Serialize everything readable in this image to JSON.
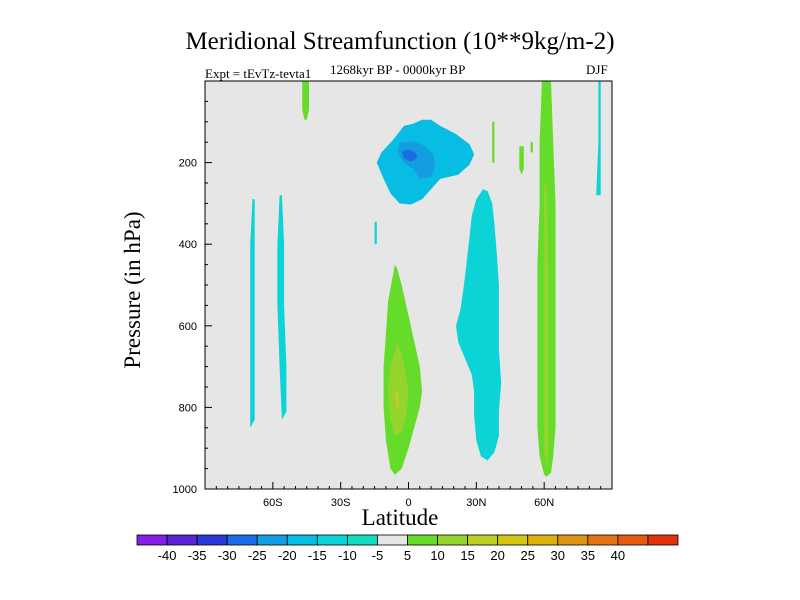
{
  "chart_data": {
    "type": "contour",
    "title": "Meridional Streamfunction (10**9kg/m-2)",
    "experiment": "Expt = tEvTz-tevta1",
    "period": "1268kyr BP - 0000kyr BP",
    "season": "DJF",
    "xlabel": "Latitude",
    "ylabel": "Pressure (in hPa)",
    "xlim": [
      -90,
      90
    ],
    "ylim": [
      1000,
      0
    ],
    "x_ticks": [
      {
        "value": -60,
        "label": "60S"
      },
      {
        "value": -30,
        "label": "30S"
      },
      {
        "value": 0,
        "label": "0"
      },
      {
        "value": 30,
        "label": "30N"
      },
      {
        "value": 60,
        "label": "60N"
      }
    ],
    "y_ticks": [
      {
        "value": 200,
        "label": "200"
      },
      {
        "value": 400,
        "label": "400"
      },
      {
        "value": 600,
        "label": "600"
      },
      {
        "value": 800,
        "label": "800"
      },
      {
        "value": 1000,
        "label": "1000"
      }
    ],
    "background_color": "#e6e6e6",
    "regions": [
      {
        "level": -10,
        "polygon": [
          [
            -2,
            110
          ],
          [
            -7,
            145
          ],
          [
            -12,
            175
          ],
          [
            -14,
            200
          ],
          [
            -11,
            240
          ],
          [
            -8,
            275
          ],
          [
            -4,
            300
          ],
          [
            1,
            303
          ],
          [
            6,
            290
          ],
          [
            10,
            265
          ],
          [
            14,
            240
          ],
          [
            22,
            230
          ],
          [
            27,
            205
          ],
          [
            29,
            180
          ],
          [
            27,
            155
          ],
          [
            21,
            130
          ],
          [
            14,
            110
          ],
          [
            10,
            95
          ],
          [
            6,
            95
          ],
          [
            2,
            105
          ]
        ]
      },
      {
        "level": -15,
        "polygon": [
          [
            -4,
            150
          ],
          [
            -5,
            175
          ],
          [
            -2,
            200
          ],
          [
            2,
            215
          ],
          [
            5,
            240
          ],
          [
            10,
            235
          ],
          [
            12,
            210
          ],
          [
            11,
            180
          ],
          [
            7,
            158
          ],
          [
            2,
            148
          ]
        ]
      },
      {
        "level": -20,
        "polygon": [
          [
            -3,
            172
          ],
          [
            -2,
            190
          ],
          [
            1,
            198
          ],
          [
            4,
            188
          ],
          [
            3,
            174
          ],
          [
            0,
            168
          ]
        ]
      },
      {
        "level": -5,
        "polygon": [
          [
            21,
            600
          ],
          [
            22,
            640
          ],
          [
            25,
            680
          ],
          [
            28,
            720
          ],
          [
            29,
            760
          ],
          [
            29,
            820
          ],
          [
            30,
            880
          ],
          [
            32,
            920
          ],
          [
            35,
            930
          ],
          [
            38,
            910
          ],
          [
            40,
            870
          ],
          [
            40,
            810
          ],
          [
            41,
            740
          ],
          [
            40,
            660
          ],
          [
            40,
            580
          ],
          [
            40,
            500
          ],
          [
            39,
            420
          ],
          [
            38,
            350
          ],
          [
            37,
            300
          ],
          [
            35,
            270
          ],
          [
            33,
            265
          ],
          [
            30,
            290
          ],
          [
            28,
            330
          ],
          [
            27,
            380
          ],
          [
            26,
            430
          ],
          [
            25,
            480
          ],
          [
            24,
            520
          ],
          [
            23,
            560
          ]
        ]
      },
      {
        "level": -5,
        "polygon": [
          [
            -15,
            345
          ],
          [
            -15,
            400
          ],
          [
            -14,
            400
          ],
          [
            -14,
            345
          ]
        ]
      },
      {
        "level": -5,
        "polygon": [
          [
            -69,
            290
          ],
          [
            -70,
            400
          ],
          [
            -70,
            550
          ],
          [
            -70,
            700
          ],
          [
            -70,
            850
          ],
          [
            -68,
            830
          ],
          [
            -68,
            700
          ],
          [
            -68,
            550
          ],
          [
            -68,
            400
          ],
          [
            -68,
            290
          ]
        ]
      },
      {
        "level": -5,
        "polygon": [
          [
            -57,
            280
          ],
          [
            -58,
            400
          ],
          [
            -58,
            550
          ],
          [
            -57,
            700
          ],
          [
            -56,
            830
          ],
          [
            -54,
            810
          ],
          [
            -54,
            700
          ],
          [
            -55,
            550
          ],
          [
            -55,
            400
          ],
          [
            -56,
            280
          ]
        ]
      },
      {
        "level": -5,
        "polygon": [
          [
            84,
            0
          ],
          [
            84,
            150
          ],
          [
            83,
            280
          ],
          [
            85,
            280
          ],
          [
            85,
            150
          ],
          [
            85,
            0
          ]
        ]
      },
      {
        "level": 5,
        "polygon": [
          [
            -6,
            450
          ],
          [
            -9,
            540
          ],
          [
            -10,
            620
          ],
          [
            -11,
            700
          ],
          [
            -11,
            800
          ],
          [
            -10,
            880
          ],
          [
            -8,
            950
          ],
          [
            -6,
            965
          ],
          [
            -3,
            950
          ],
          [
            0,
            900
          ],
          [
            3,
            840
          ],
          [
            5,
            800
          ],
          [
            6,
            760
          ],
          [
            5,
            700
          ],
          [
            3,
            650
          ],
          [
            1,
            600
          ],
          [
            -1,
            550
          ],
          [
            -3,
            500
          ],
          [
            -5,
            460
          ]
        ]
      },
      {
        "level": 10,
        "polygon": [
          [
            -5,
            640
          ],
          [
            -8,
            700
          ],
          [
            -9,
            760
          ],
          [
            -8,
            830
          ],
          [
            -6,
            870
          ],
          [
            -3,
            860
          ],
          [
            -1,
            820
          ],
          [
            0,
            770
          ],
          [
            -1,
            720
          ],
          [
            -3,
            670
          ]
        ]
      },
      {
        "level": 15,
        "polygon": [
          [
            -5,
            750
          ],
          [
            -6,
            775
          ],
          [
            -5,
            810
          ],
          [
            -4,
            790
          ]
        ]
      },
      {
        "level": 5,
        "polygon": [
          [
            59,
            0
          ],
          [
            58,
            150
          ],
          [
            58,
            300
          ],
          [
            57,
            450
          ],
          [
            57,
            600
          ],
          [
            57,
            750
          ],
          [
            57,
            850
          ],
          [
            58,
            920
          ],
          [
            60,
            965
          ],
          [
            61,
            970
          ],
          [
            63,
            960
          ],
          [
            64,
            920
          ],
          [
            65,
            850
          ],
          [
            65,
            750
          ],
          [
            65,
            600
          ],
          [
            65,
            450
          ],
          [
            65,
            300
          ],
          [
            64,
            150
          ],
          [
            63,
            0
          ]
        ]
      },
      {
        "level": 10,
        "polygon": [
          [
            60,
            250
          ],
          [
            60,
            500
          ],
          [
            60,
            700
          ],
          [
            60,
            900
          ],
          [
            61,
            950
          ],
          [
            62,
            900
          ],
          [
            62,
            700
          ],
          [
            62,
            500
          ],
          [
            61,
            250
          ]
        ]
      },
      {
        "level": 5,
        "polygon": [
          [
            -47,
            0
          ],
          [
            -47,
            70
          ],
          [
            -46,
            95
          ],
          [
            -45,
            95
          ],
          [
            -44,
            70
          ],
          [
            -44,
            0
          ]
        ]
      },
      {
        "level": 5,
        "polygon": [
          [
            37,
            100
          ],
          [
            37,
            200
          ],
          [
            38,
            200
          ],
          [
            38,
            100
          ]
        ]
      },
      {
        "level": 5,
        "polygon": [
          [
            49,
            160
          ],
          [
            49,
            215
          ],
          [
            50,
            230
          ],
          [
            51,
            215
          ],
          [
            51,
            160
          ]
        ]
      },
      {
        "level": 5,
        "polygon": [
          [
            54,
            150
          ],
          [
            54,
            175
          ],
          [
            55,
            175
          ],
          [
            55,
            150
          ]
        ]
      }
    ],
    "colorbar": {
      "colors": [
        "#8520e5",
        "#5a23d5",
        "#2a3ad6",
        "#1c6ce6",
        "#149ee2",
        "#08bde3",
        "#0cd3d6",
        "#15dbbd",
        "#e6e6e6",
        "#66dc2a",
        "#95d42c",
        "#bccf22",
        "#d3c512",
        "#dab20b",
        "#df9416",
        "#e47316",
        "#e45c0d",
        "#e0340c"
      ],
      "labels": [
        "-40",
        "-35",
        "-30",
        "-25",
        "-20",
        "-15",
        "-10",
        "-5",
        "5",
        "10",
        "15",
        "20",
        "25",
        "30",
        "35",
        "40"
      ]
    }
  }
}
